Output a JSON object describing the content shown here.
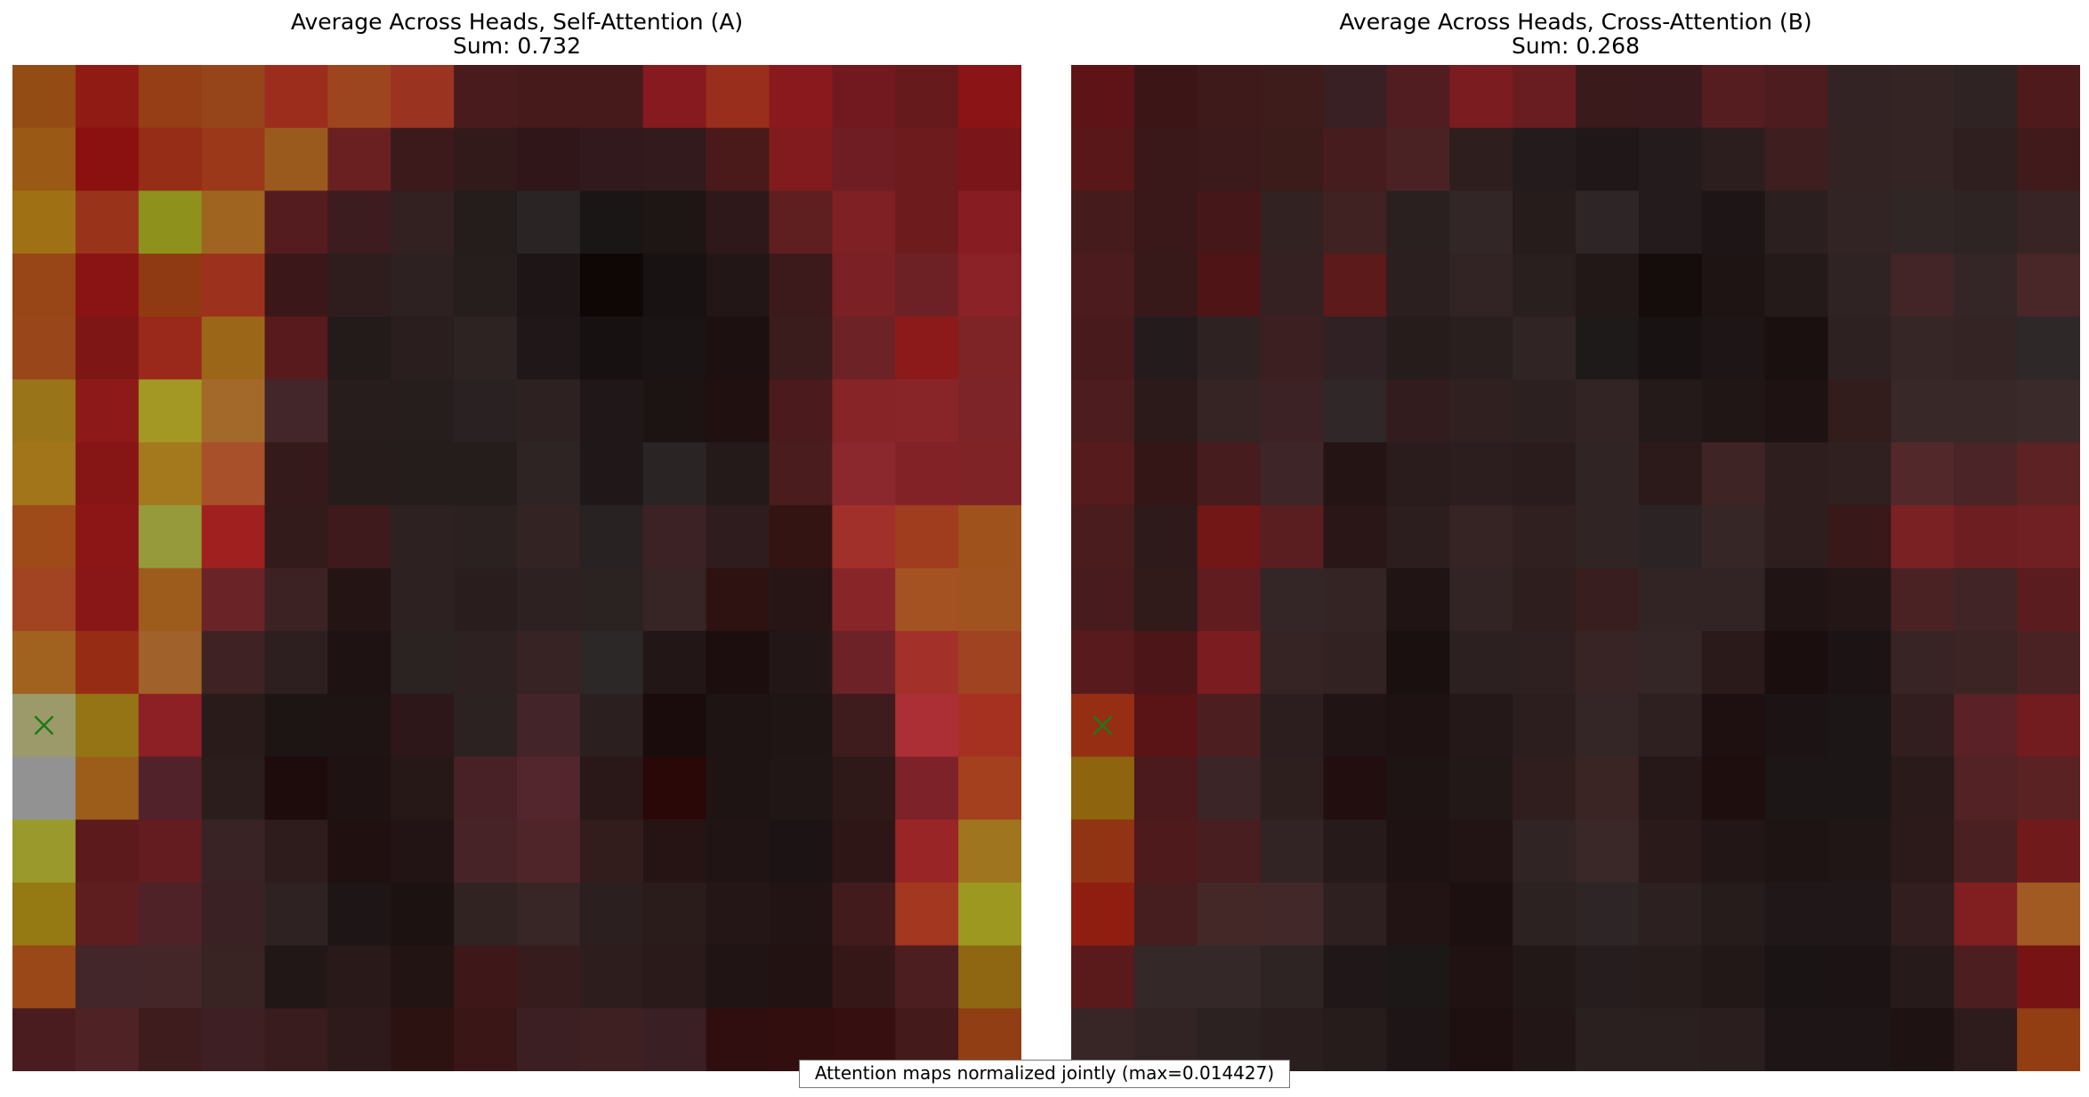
{
  "chart_data": [
    {
      "type": "heatmap",
      "title": "Average Across Heads, Self-Attention (A)",
      "subtitle": "Sum: 0.732",
      "marker": {
        "row": 10,
        "col": 0,
        "symbol": "x",
        "color": "#1a7a1a"
      },
      "cell_colors": [
        [
          "#944c15",
          "#901a14",
          "#963e15",
          "#96451a",
          "#9c2d1d",
          "#9d451e",
          "#9a3421",
          "#4a1b1c",
          "#461a1b",
          "#461a1b",
          "#861a1e",
          "#982e1b",
          "#89191d",
          "#72191f",
          "#671a1c",
          "#8a1416"
        ],
        [
          "#9a5a15",
          "#8b1010",
          "#962d16",
          "#9a3819",
          "#9a5a1e",
          "#6a1f20",
          "#3c1a1c",
          "#321a1b",
          "#301619",
          "#32191d",
          "#331a1c",
          "#4a1a1b",
          "#821b1e",
          "#6f1d22",
          "#6d1b1d",
          "#7a1619"
        ],
        [
          "#a07015",
          "#99331a",
          "#8e921c",
          "#9e6420",
          "#541c1f",
          "#3c1c1e",
          "#332121",
          "#251c1c",
          "#2b2424",
          "#1b1616",
          "#1e1515",
          "#2f1819",
          "#5f1e1f",
          "#7e2024",
          "#6e1b1e",
          "#871d22"
        ],
        [
          "#984518",
          "#8a1313",
          "#903a13",
          "#9c321d",
          "#3c1719",
          "#2f1d1e",
          "#2e2121",
          "#261d1d",
          "#1e1616",
          "#0f0606",
          "#191212",
          "#231616",
          "#3c1a1b",
          "#7b2024",
          "#6e2124",
          "#8a2227"
        ],
        [
          "#99461a",
          "#7f1616",
          "#9a281b",
          "#9c6618",
          "#581a1c",
          "#231a1a",
          "#2a1e1e",
          "#2d2323",
          "#201818",
          "#181111",
          "#1b1414",
          "#1c1010",
          "#3a1c1d",
          "#6d2326",
          "#8d1a1a",
          "#7e2427"
        ],
        [
          "#9a7418",
          "#8d1a18",
          "#a39823",
          "#a2692a",
          "#422629",
          "#271d1d",
          "#261d1d",
          "#2a2222",
          "#2e2121",
          "#201818",
          "#1c1313",
          "#201010",
          "#4a1a1c",
          "#872428",
          "#872529",
          "#7d2428"
        ],
        [
          "#a2751a",
          "#861616",
          "#a4781d",
          "#a8502a",
          "#351a1c",
          "#261c1c",
          "#251c1c",
          "#251c1c",
          "#2e2424",
          "#201818",
          "#2b2424",
          "#241a1a",
          "#4a1c1e",
          "#8b282d",
          "#822227",
          "#7f2327"
        ],
        [
          "#9e4a19",
          "#8c1616",
          "#969a3a",
          "#a02020",
          "#331a1b",
          "#3e1a1d",
          "#2e2121",
          "#2c2121",
          "#332323",
          "#292222",
          "#3c2225",
          "#2f1c1e",
          "#341313",
          "#a1302a",
          "#a03d1f",
          "#a0521d"
        ],
        [
          "#a24422",
          "#8a1717",
          "#9e5c1c",
          "#6a2428",
          "#3c2222",
          "#251414",
          "#2d2121",
          "#2a1d1d",
          "#2e2121",
          "#2b2222",
          "#372424",
          "#2e1212",
          "#271515",
          "#872529",
          "#a45222",
          "#a0531e"
        ],
        [
          "#a0621e",
          "#962c14",
          "#a0622a",
          "#3e2224",
          "#2d1f1f",
          "#1e1212",
          "#2b2222",
          "#2d2121",
          "#372323",
          "#2d2828",
          "#231616",
          "#1c0e0e",
          "#231616",
          "#6c2226",
          "#a3312a",
          "#a04320"
        ],
        [
          "#9c9a6a",
          "#947414",
          "#8c2025",
          "#2a1b1b",
          "#1d1414",
          "#1f1414",
          "#2d1718",
          "#2c2222",
          "#432428",
          "#2c1f1f",
          "#1a0c0c",
          "#1e1414",
          "#201515",
          "#3e1c1e",
          "#ab2f35",
          "#a73121"
        ],
        [
          "#929292",
          "#9c5d1b",
          "#52222a",
          "#2c1d1d",
          "#1e0c0c",
          "#1e1212",
          "#271818",
          "#482126",
          "#52262c",
          "#2a1717",
          "#2a0808",
          "#1f1414",
          "#201616",
          "#2e1818",
          "#7d2228",
          "#a5401f"
        ],
        [
          "#9a9a2c",
          "#5c1a1d",
          "#641c20",
          "#3a2324",
          "#2e1c1c",
          "#201010",
          "#221414",
          "#472226",
          "#4f2529",
          "#331c1c",
          "#261414",
          "#201414",
          "#1c1414",
          "#2e1616",
          "#9a2526",
          "#a07520"
        ],
        [
          "#957912",
          "#5e1e20",
          "#4e2226",
          "#3a2224",
          "#2e2222",
          "#1e1616",
          "#1c1212",
          "#322323",
          "#382626",
          "#2b1f1f",
          "#2b1c1c",
          "#241616",
          "#221414",
          "#421b1c",
          "#a33720",
          "#9c9820"
        ],
        [
          "#9a4818",
          "#422629",
          "#442628",
          "#3a2323",
          "#211717",
          "#2a1919",
          "#231414",
          "#3e1719",
          "#361c1d",
          "#2e1d1d",
          "#2a1a1a",
          "#211414",
          "#231212",
          "#361718",
          "#4c1e1f",
          "#8f6713"
        ],
        [
          "#4b1c1f",
          "#4f2226",
          "#3e1c1e",
          "#3e2024",
          "#391c1e",
          "#2e1a1a",
          "#2d1212",
          "#3a1616",
          "#3b1f22",
          "#3e2023",
          "#3a2024",
          "#300e0f",
          "#330e0f",
          "#360f10",
          "#441a1b",
          "#913e14"
        ]
      ]
    },
    {
      "type": "heatmap",
      "title": "Average Across Heads, Cross-Attention (B)",
      "subtitle": "Sum: 0.268",
      "marker": {
        "row": 10,
        "col": 0,
        "symbol": "x",
        "color": "#1a7a1a"
      },
      "cell_colors": [
        [
          "#5e1416",
          "#3c1617",
          "#3f1a1b",
          "#3e1c1c",
          "#382024",
          "#521d20",
          "#7a1c20",
          "#691d21",
          "#3a1a1b",
          "#3a1a1c",
          "#561d20",
          "#4c1c1f",
          "#342324",
          "#342424",
          "#302323",
          "#4e1a1b"
        ],
        [
          "#5a1719",
          "#3a1718",
          "#3c1a1b",
          "#3c1b1b",
          "#461c1e",
          "#4b2224",
          "#2f1e1e",
          "#241c1c",
          "#201818",
          "#241c1c",
          "#2c1e1e",
          "#3e1e1f",
          "#342323",
          "#342424",
          "#301f1f",
          "#411a1b"
        ],
        [
          "#451b1c",
          "#3a1819",
          "#461718",
          "#332222",
          "#402223",
          "#2a2020",
          "#322626",
          "#261c1c",
          "#2e2626",
          "#241c1c",
          "#1e1616",
          "#2c1f1f",
          "#322424",
          "#302626",
          "#2e2424",
          "#382424"
        ],
        [
          "#4c1b1d",
          "#381919",
          "#4f1516",
          "#352122",
          "#5c1a1b",
          "#2c1f1f",
          "#322424",
          "#2a1f1f",
          "#221818",
          "#150c0c",
          "#1e1414",
          "#241a1a",
          "#302323",
          "#432427",
          "#342626",
          "#492628"
        ],
        [
          "#481a1c",
          "#241c1c",
          "#2e2222",
          "#3c1f21",
          "#302224",
          "#261c1c",
          "#2a1f1f",
          "#302424",
          "#1e1a1a",
          "#191212",
          "#1e1616",
          "#1a1010",
          "#2e2121",
          "#362626",
          "#342424",
          "#2e2828"
        ],
        [
          "#4c1c1e",
          "#2c1a1a",
          "#362323",
          "#3c2224",
          "#302828",
          "#321c1e",
          "#302020",
          "#2c2020",
          "#322424",
          "#241a1a",
          "#201616",
          "#1e1212",
          "#321c1c",
          "#382828",
          "#382828",
          "#3a2a2a"
        ],
        [
          "#561b1d",
          "#341617",
          "#461c1e",
          "#3e2628",
          "#241414",
          "#2a1c1c",
          "#2c1e1e",
          "#2a1c1c",
          "#302424",
          "#2c1a1a",
          "#3e2424",
          "#2e1e1e",
          "#302020",
          "#52282b",
          "#4a2426",
          "#5c2224"
        ],
        [
          "#4a1c1e",
          "#2e1a1a",
          "#721616",
          "#5a1e20",
          "#2a1616",
          "#2c1e1e",
          "#362424",
          "#302020",
          "#302424",
          "#2c2424",
          "#362626",
          "#2e1e1e",
          "#381819",
          "#7a2124",
          "#6c1e20",
          "#701f22"
        ],
        [
          "#481c1e",
          "#301a1a",
          "#601c1e",
          "#342626",
          "#342424",
          "#201414",
          "#322424",
          "#2e1e1e",
          "#381e1e",
          "#322424",
          "#322424",
          "#201414",
          "#241616",
          "#4a2224",
          "#402426",
          "#5a1c1e"
        ],
        [
          "#581a1c",
          "#4c1618",
          "#7a1c20",
          "#362424",
          "#322222",
          "#1a1010",
          "#2c2020",
          "#2e2020",
          "#382424",
          "#342626",
          "#2a1a1a",
          "#1a0e0e",
          "#1c1414",
          "#382424",
          "#3c2424",
          "#4a2224"
        ],
        [
          "#962e14",
          "#5a1416",
          "#4c1e20",
          "#2c1e1e",
          "#201414",
          "#1e1212",
          "#241818",
          "#2c1e1e",
          "#342626",
          "#2e2020",
          "#1e1010",
          "#1c1414",
          "#1c1616",
          "#321e1e",
          "#5a2226",
          "#721c20"
        ],
        [
          "#8e640e",
          "#4a1a1c",
          "#3c2526",
          "#2e1f1f",
          "#220e0e",
          "#1e1414",
          "#221818",
          "#301e1e",
          "#3a2424",
          "#261818",
          "#1e0e0e",
          "#1c1616",
          "#1c1616",
          "#2a1a1a",
          "#522224",
          "#5a2223"
        ],
        [
          "#903414",
          "#4e1a1c",
          "#481e20",
          "#322424",
          "#261a1a",
          "#1e1212",
          "#221414",
          "#302424",
          "#3a2828",
          "#2a1a1a",
          "#221616",
          "#1e1414",
          "#201616",
          "#2c1a1a",
          "#4a2022",
          "#701a1c"
        ],
        [
          "#901e10",
          "#461e20",
          "#442828",
          "#422829",
          "#2e2020",
          "#221414",
          "#1c1010",
          "#2c2222",
          "#2e2626",
          "#2c2020",
          "#261c1c",
          "#201818",
          "#201818",
          "#321e1e",
          "#801e20",
          "#a05a22"
        ],
        [
          "#5a1a1c",
          "#342828",
          "#342828",
          "#2e2424",
          "#201818",
          "#1c1818",
          "#201212",
          "#221818",
          "#261e1e",
          "#261c1c",
          "#221818",
          "#1a1414",
          "#1c1414",
          "#261a1a",
          "#4c1e20",
          "#781314"
        ],
        [
          "#382626",
          "#322424",
          "#2c2222",
          "#2a1e1e",
          "#261c1c",
          "#1e1616",
          "#1e1010",
          "#221616",
          "#2a2020",
          "#2a2020",
          "#2a1e1e",
          "#1e1616",
          "#1e1616",
          "#1e1212",
          "#2e1c1c",
          "#923e12"
        ]
      ]
    }
  ],
  "footnote": "Attention maps normalized jointly (max=0.014427)"
}
